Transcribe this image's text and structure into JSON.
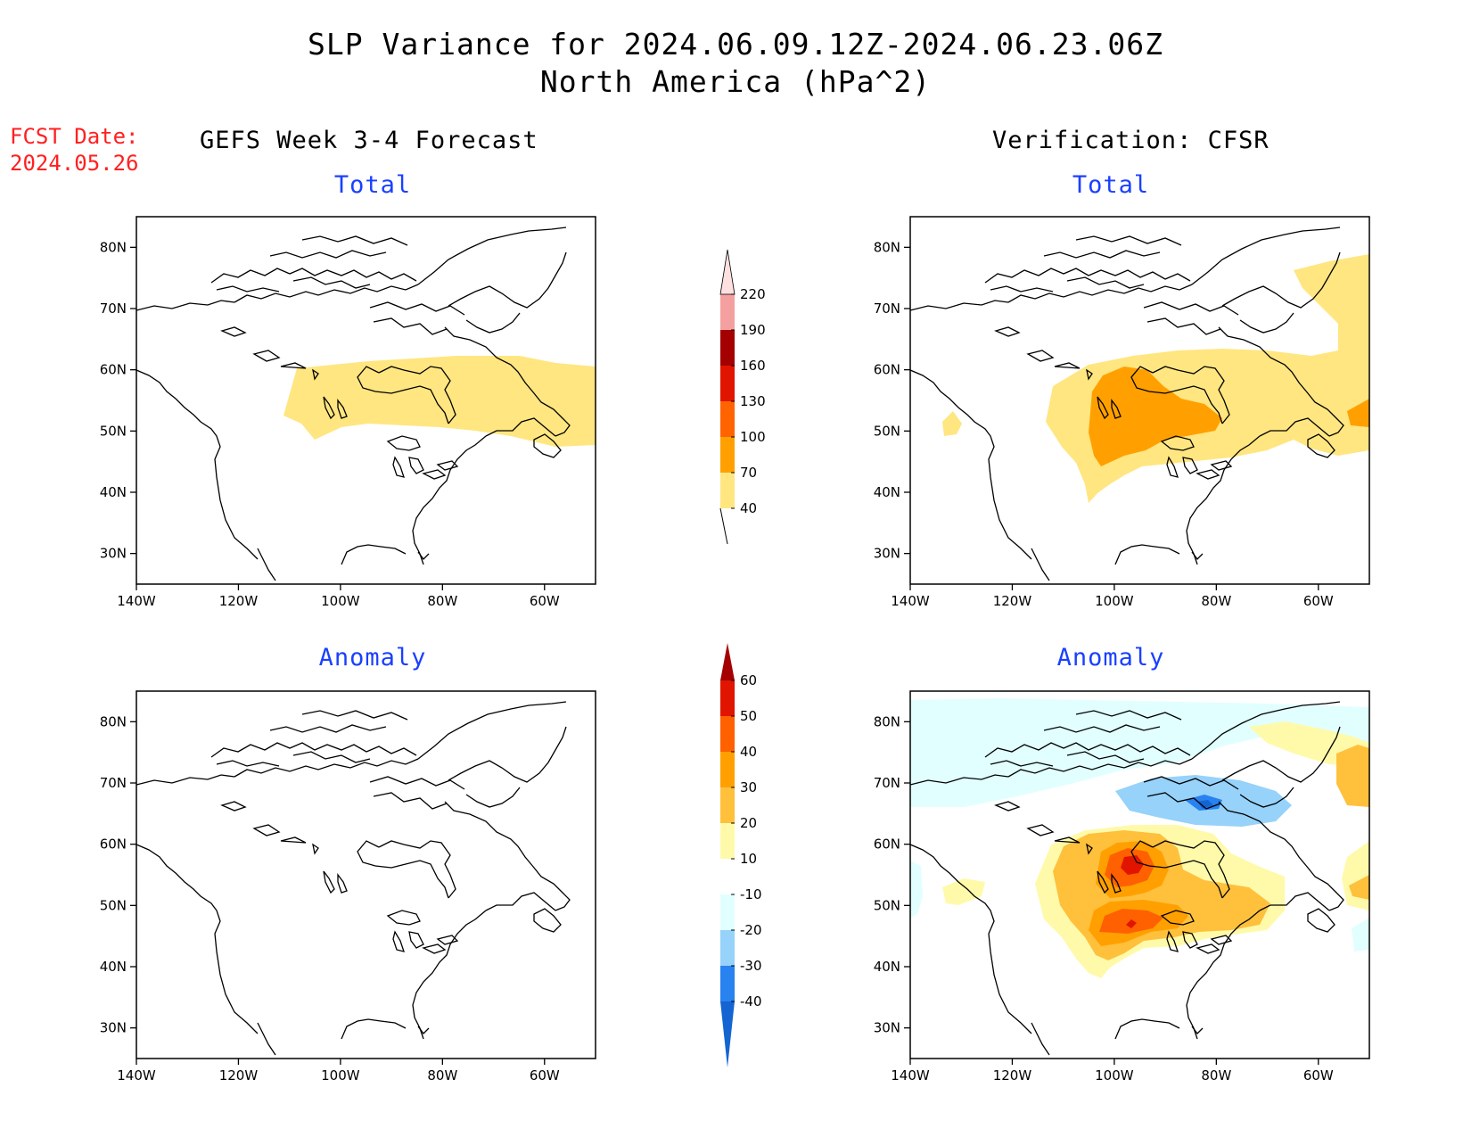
{
  "title": {
    "line1": "SLP Variance for 2024.06.09.12Z-2024.06.23.06Z",
    "line2": "North America (hPa^2)"
  },
  "fcst": {
    "line1": "FCST Date:",
    "line2": "2024.05.26"
  },
  "columns": {
    "left": "GEFS Week 3-4 Forecast",
    "right": "Verification: CFSR"
  },
  "panels": {
    "tl": "Total",
    "tr": "Total",
    "bl": "Anomaly",
    "br": "Anomaly"
  },
  "axes": {
    "lat_labels": [
      "80N",
      "70N",
      "60N",
      "50N",
      "40N",
      "30N"
    ],
    "lat_values": [
      80,
      70,
      60,
      50,
      40,
      30
    ],
    "lon_labels": [
      "140W",
      "120W",
      "100W",
      "80W",
      "60W"
    ],
    "lon_values": [
      -140,
      -120,
      -100,
      -80,
      -60
    ],
    "lon_range": [
      -140,
      -50
    ],
    "lat_range": [
      25,
      85
    ]
  },
  "colorbars": {
    "total": {
      "labels": [
        "40",
        "70",
        "100",
        "130",
        "160",
        "190",
        "220"
      ],
      "colors": [
        "#ffe680",
        "#ffa000",
        "#ff6400",
        "#e11400",
        "#a50000",
        "#f4a0a0",
        "#ffe0e0"
      ]
    },
    "anomaly": {
      "labels": [
        "-40",
        "-30",
        "-20",
        "-10",
        "10",
        "20",
        "30",
        "40",
        "50",
        "60"
      ],
      "colors": [
        "#1464d2",
        "#2882f0",
        "#96d2fa",
        "#e1ffff",
        "#ffffff",
        "#fffaaa",
        "#ffc03c",
        "#ffa000",
        "#ff6000",
        "#e11400",
        "#a50000"
      ]
    }
  }
}
